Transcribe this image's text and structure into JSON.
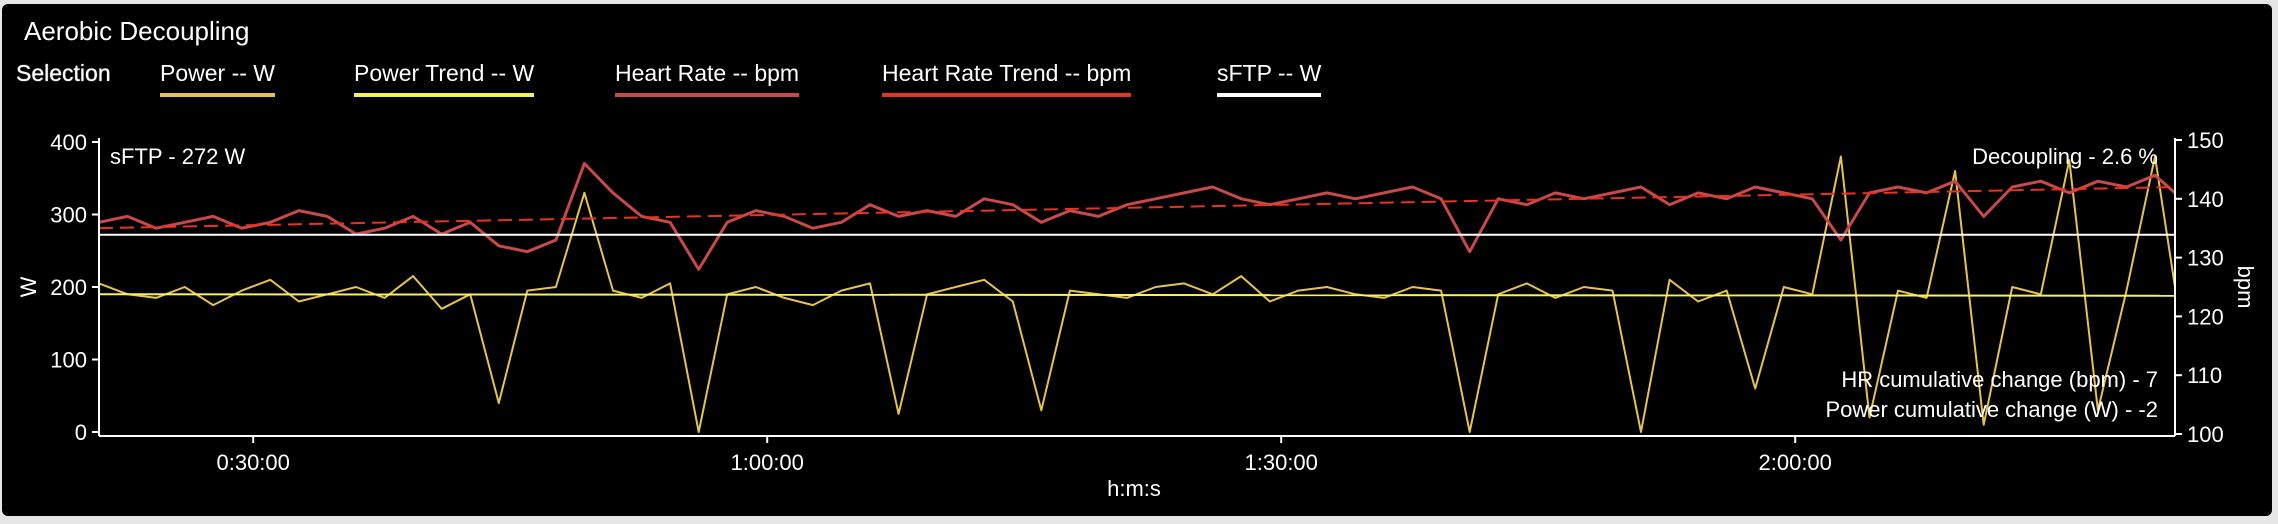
{
  "panel": {
    "title": "Aerobic Decoupling"
  },
  "legend": {
    "selection_label": "Selection",
    "items": [
      {
        "label": "Power  -- W",
        "color": "#e6c34f"
      },
      {
        "label": "Power Trend  -- W",
        "color": "#f5f55a"
      },
      {
        "label": "Heart Rate  -- bpm",
        "color": "#c9484a"
      },
      {
        "label": "Heart Rate Trend  -- bpm",
        "color": "#e8331f"
      },
      {
        "label": "sFTP  -- W",
        "color": "#ffffff"
      }
    ]
  },
  "chart_data": {
    "type": "line",
    "xlabel": "h:m:s",
    "ylabel_left": "W",
    "ylabel_right": "bpm",
    "x_ticks": [
      "0:30:00",
      "1:00:00",
      "1:30:00",
      "2:00:00"
    ],
    "x_tick_seconds": [
      1800,
      3600,
      5400,
      7200
    ],
    "xlim_seconds": [
      1260,
      8530
    ],
    "y_left": {
      "ticks": [
        0,
        100,
        200,
        300,
        400
      ],
      "range": [
        0,
        400
      ]
    },
    "y_right": {
      "ticks": [
        100,
        110,
        120,
        130,
        140,
        150
      ],
      "range": [
        100,
        150
      ]
    },
    "annotations": {
      "sftp": "sFTP - 272 W",
      "decoupling": "Decoupling - 2.6 %",
      "hr_change": "HR cumulative change (bpm) - 7",
      "power_change": "Power cumulative change (W) - -2"
    },
    "sftp_watts": 272,
    "power_trend": {
      "start": 190,
      "end": 188
    },
    "hr_trend": {
      "start": 135,
      "end": 142
    },
    "series": [
      {
        "name": "Power",
        "axis": "left",
        "color": "#e6c34f",
        "x_seconds": [
          1260,
          1360,
          1460,
          1560,
          1660,
          1760,
          1860,
          1960,
          2060,
          2160,
          2260,
          2360,
          2460,
          2560,
          2660,
          2760,
          2860,
          2960,
          3060,
          3160,
          3260,
          3360,
          3460,
          3560,
          3660,
          3760,
          3860,
          3960,
          4060,
          4160,
          4260,
          4360,
          4460,
          4560,
          4660,
          4760,
          4860,
          4960,
          5060,
          5160,
          5260,
          5360,
          5460,
          5560,
          5660,
          5760,
          5860,
          5960,
          6060,
          6160,
          6260,
          6360,
          6460,
          6560,
          6660,
          6760,
          6860,
          6960,
          7060,
          7160,
          7260,
          7360,
          7460,
          7560,
          7660,
          7760,
          7860,
          7960,
          8060,
          8160,
          8260,
          8360,
          8460,
          8530
        ],
        "values": [
          205,
          190,
          185,
          200,
          175,
          195,
          210,
          180,
          190,
          200,
          185,
          215,
          170,
          190,
          40,
          195,
          200,
          330,
          195,
          185,
          205,
          0,
          190,
          200,
          185,
          175,
          195,
          205,
          25,
          190,
          200,
          210,
          180,
          30,
          195,
          190,
          185,
          200,
          205,
          190,
          215,
          180,
          195,
          200,
          190,
          185,
          200,
          195,
          0,
          190,
          205,
          185,
          200,
          195,
          0,
          210,
          180,
          195,
          60,
          200,
          190,
          380,
          20,
          195,
          185,
          360,
          10,
          200,
          190,
          375,
          30,
          195,
          380,
          200
        ]
      },
      {
        "name": "Heart Rate",
        "axis": "right",
        "color": "#c9484a",
        "x_seconds": [
          1260,
          1360,
          1460,
          1560,
          1660,
          1760,
          1860,
          1960,
          2060,
          2160,
          2260,
          2360,
          2460,
          2560,
          2660,
          2760,
          2860,
          2960,
          3060,
          3160,
          3260,
          3360,
          3460,
          3560,
          3660,
          3760,
          3860,
          3960,
          4060,
          4160,
          4260,
          4360,
          4460,
          4560,
          4660,
          4760,
          4860,
          4960,
          5060,
          5160,
          5260,
          5360,
          5460,
          5560,
          5660,
          5760,
          5860,
          5960,
          6060,
          6160,
          6260,
          6360,
          6460,
          6560,
          6660,
          6760,
          6860,
          6960,
          7060,
          7160,
          7260,
          7360,
          7460,
          7560,
          7660,
          7760,
          7860,
          7960,
          8060,
          8160,
          8260,
          8360,
          8460,
          8530
        ],
        "values": [
          136,
          137,
          135,
          136,
          137,
          135,
          136,
          138,
          137,
          134,
          135,
          137,
          134,
          136,
          132,
          131,
          133,
          146,
          141,
          137,
          136,
          128,
          136,
          138,
          137,
          135,
          136,
          139,
          137,
          138,
          137,
          140,
          139,
          136,
          138,
          137,
          139,
          140,
          141,
          142,
          140,
          139,
          140,
          141,
          140,
          141,
          142,
          140,
          131,
          140,
          139,
          141,
          140,
          141,
          142,
          139,
          141,
          140,
          142,
          141,
          140,
          133,
          141,
          142,
          141,
          143,
          137,
          142,
          143,
          141,
          143,
          142,
          144,
          141
        ]
      }
    ]
  }
}
